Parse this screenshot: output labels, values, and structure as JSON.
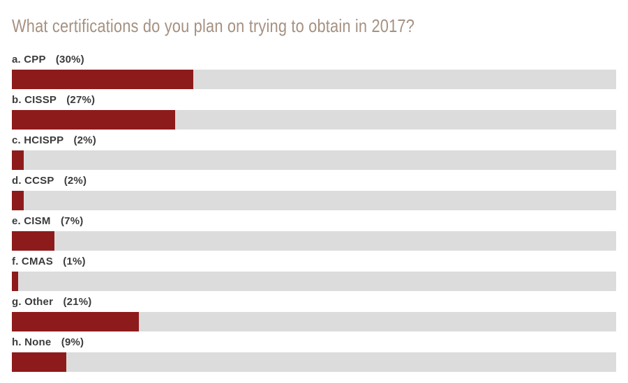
{
  "title": "What certifications do you plan on trying to obtain in 2017?",
  "colors": {
    "bar_fill": "#8e1b1b",
    "bar_track": "#dcdcdc",
    "label_text": "#3b3b3b",
    "title_text": "#a59181",
    "page_background": "#ffffff"
  },
  "chart_data": {
    "type": "bar",
    "orientation": "horizontal",
    "title": "What certifications do you plan on trying to obtain in 2017?",
    "categories": [
      "a. CPP",
      "b. CISSP",
      "c. HCISPP",
      "d. CCSP",
      "e. CISM",
      "f. CMAS",
      "g. Other",
      "h. None"
    ],
    "values": [
      30,
      27,
      2,
      2,
      7,
      1,
      21,
      9
    ],
    "value_unit": "%",
    "xlim": [
      0,
      100
    ],
    "grid": "off",
    "legend": "none",
    "rows": [
      {
        "label_text": "a. CPP",
        "percent_text": "(30%)",
        "value": 30
      },
      {
        "label_text": "b. CISSP",
        "percent_text": "(27%)",
        "value": 27
      },
      {
        "label_text": "c. HCISPP",
        "percent_text": "(2%)",
        "value": 2
      },
      {
        "label_text": "d. CCSP",
        "percent_text": "(2%)",
        "value": 2
      },
      {
        "label_text": "e. CISM",
        "percent_text": "(7%)",
        "value": 7
      },
      {
        "label_text": "f. CMAS",
        "percent_text": "(1%)",
        "value": 1
      },
      {
        "label_text": "g. Other",
        "percent_text": "(21%)",
        "value": 21
      },
      {
        "label_text": "h. None",
        "percent_text": "(9%)",
        "value": 9
      }
    ]
  }
}
